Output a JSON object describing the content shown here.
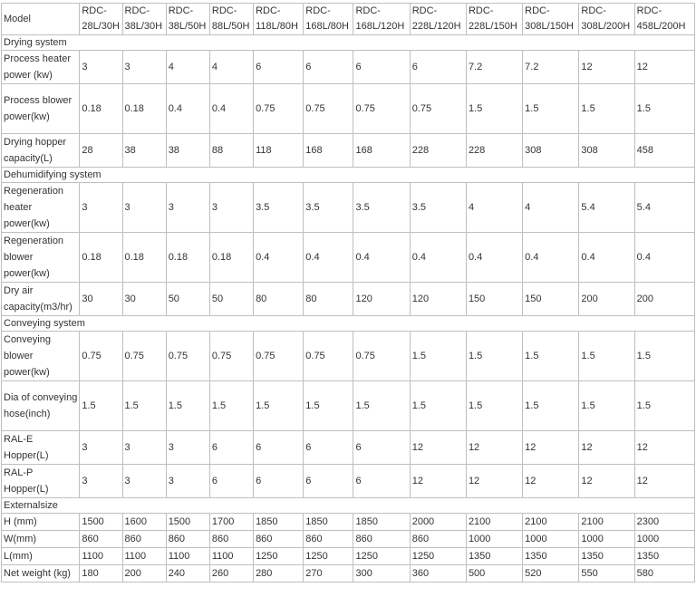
{
  "header": {
    "label": "Model",
    "models": [
      "RDC-28L/30H",
      "RDC-38L/30H",
      "RDC-38L/50H",
      "RDC-88L/50H",
      "RDC-118L/80H",
      "RDC-168L/80H",
      "RDC-168L/120H",
      "RDC-228L/120H",
      "RDC-228L/150H",
      "RDC-308L/150H",
      "RDC-308L/200H",
      "RDC-458L/200H"
    ]
  },
  "sections": [
    {
      "title": "Drying system",
      "rows": [
        {
          "label": "Process heater power (kw)",
          "values": [
            "3",
            "3",
            "4",
            "4",
            "6",
            "6",
            "6",
            "6",
            "7.2",
            "7.2",
            "12",
            "12"
          ]
        },
        {
          "label": "Process blower power(kw)",
          "values": [
            "0.18",
            "0.18",
            "0.4",
            "0.4",
            "0.75",
            "0.75",
            "0.75",
            "0.75",
            "1.5",
            "1.5",
            "1.5",
            "1.5"
          ]
        },
        {
          "label": "Drying hopper capacity(L)",
          "values": [
            "28",
            "38",
            "38",
            "88",
            "118",
            "168",
            "168",
            "228",
            "228",
            "308",
            "308",
            "458"
          ]
        }
      ]
    },
    {
      "title": "Dehumidifying system",
      "rows": [
        {
          "label": "Regeneration heater power(kw)",
          "values": [
            "3",
            "3",
            "3",
            "3",
            "3.5",
            "3.5",
            "3.5",
            "3.5",
            "4",
            "4",
            "5.4",
            "5.4"
          ]
        },
        {
          "label": "Regeneration blower power(kw)",
          "values": [
            "0.18",
            "0.18",
            "0.18",
            "0.18",
            "0.4",
            "0.4",
            "0.4",
            "0.4",
            "0.4",
            "0.4",
            "0.4",
            "0.4"
          ]
        },
        {
          "label": "Dry air capacity(m3/hr)",
          "values": [
            "30",
            "30",
            "50",
            "50",
            "80",
            "80",
            "120",
            "120",
            "150",
            "150",
            "200",
            "200"
          ]
        }
      ]
    },
    {
      "title": "Conveying system",
      "rows": [
        {
          "label": "Conveying blower power(kw)",
          "values": [
            "0.75",
            "0.75",
            "0.75",
            "0.75",
            "0.75",
            "0.75",
            "0.75",
            "1.5",
            "1.5",
            "1.5",
            "1.5",
            "1.5"
          ]
        },
        {
          "label": "Dia of conveying hose(inch)",
          "values": [
            "1.5",
            "1.5",
            "1.5",
            "1.5",
            "1.5",
            "1.5",
            "1.5",
            "1.5",
            "1.5",
            "1.5",
            "1.5",
            "1.5"
          ]
        },
        {
          "label": "RAL-E Hopper(L)",
          "values": [
            "3",
            "3",
            "3",
            "6",
            "6",
            "6",
            "6",
            "12",
            "12",
            "12",
            "12",
            "12"
          ]
        },
        {
          "label": "RAL-P Hopper(L)",
          "values": [
            "3",
            "3",
            "3",
            "6",
            "6",
            "6",
            "6",
            "12",
            "12",
            "12",
            "12",
            "12"
          ]
        }
      ]
    },
    {
      "title": "Externalsize",
      "rows": [
        {
          "label": "H (mm)",
          "values": [
            "1500",
            "1600",
            "1500",
            "1700",
            "1850",
            "1850",
            "1850",
            "2000",
            "2100",
            "2100",
            "2100",
            "2300"
          ]
        },
        {
          "label": "W(mm)",
          "values": [
            "860",
            "860",
            "860",
            "860",
            "860",
            "860",
            "860",
            "860",
            "1000",
            "1000",
            "1000",
            "1000"
          ]
        },
        {
          "label": "L(mm)",
          "values": [
            "1100",
            "1100",
            "1100",
            "1100",
            "1250",
            "1250",
            "1250",
            "1250",
            "1350",
            "1350",
            "1350",
            "1350"
          ]
        },
        {
          "label": "Net weight (kg)",
          "values": [
            "180",
            "200",
            "240",
            "260",
            "280",
            "270",
            "300",
            "360",
            "500",
            "520",
            "550",
            "580"
          ]
        }
      ]
    }
  ]
}
